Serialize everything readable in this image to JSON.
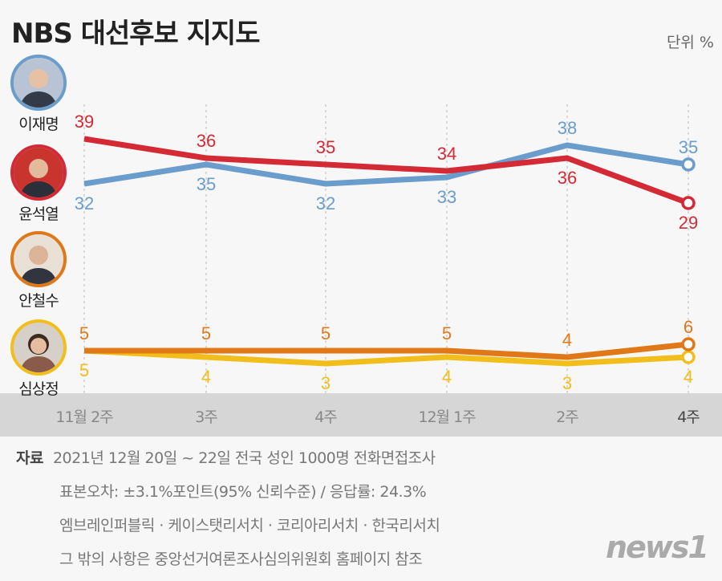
{
  "title": "NBS 대선후보 지지도",
  "unit": "단위 %",
  "chart_data": {
    "type": "line",
    "title": "NBS 대선후보 지지도",
    "categories": [
      "11월 2주",
      "3주",
      "4주",
      "12월 1주",
      "2주",
      "4주"
    ],
    "grid": "vertical dashed",
    "axis_break": true,
    "series": [
      {
        "name": "이재명",
        "color": "#6a9ccc",
        "values": [
          32,
          35,
          32,
          33,
          38,
          35
        ]
      },
      {
        "name": "윤석열",
        "color": "#d42a35",
        "values": [
          39,
          36,
          35,
          34,
          36,
          29
        ]
      },
      {
        "name": "안철수",
        "color": "#e07818",
        "values": [
          5,
          5,
          5,
          5,
          4,
          6
        ]
      },
      {
        "name": "심상정",
        "color": "#f2be1c",
        "values": [
          5,
          4,
          3,
          4,
          3,
          4
        ]
      }
    ]
  },
  "footer": {
    "source_label": "자료",
    "lines": [
      "2021년 12월 20일 ~ 22일 전국 성인 1000명 전화면접조사",
      "표본오차: ±3.1%포인트(95% 신뢰수준) / 응답률: 24.3%",
      "엠브레인퍼블릭 · 케이스탯리서치 · 코리아리서치 · 한국리서치",
      "그 밖의 사항은 중앙선거여론조사심의위원회 홈페이지 참조"
    ]
  },
  "logo": "news1"
}
